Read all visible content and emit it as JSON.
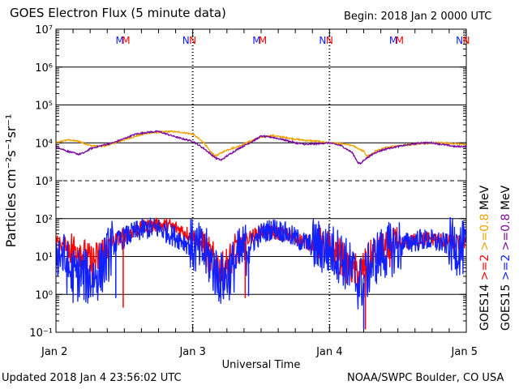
{
  "title": "GOES Electron Flux (5 minute data)",
  "begin_text": "Begin: 2018 Jan 2 0000 UTC",
  "updated_text": "Updated 2018 Jan  4 23:56:02 UTC",
  "credit_text": "NOAA/SWPC Boulder, CO USA",
  "colors": {
    "e08_goes14": "#f0a000",
    "e08_goes15": "#7a0a9e",
    "e2_goes14": "#ff0000",
    "e2_goes15": "#1020ff"
  },
  "chart_data": {
    "type": "line",
    "xlabel": "Universal Time",
    "ylabel": "Particles cm⁻²s⁻¹sr⁻¹",
    "y_scale": "log",
    "ylim_exponents": [
      -1,
      7
    ],
    "y_tick_labels": [
      "10⁻¹",
      "10⁰",
      "10¹",
      "10²",
      "10³",
      "10⁴",
      "10⁵",
      "10⁶",
      "10⁷"
    ],
    "x_tick_labels": [
      "Jan 2",
      "Jan 3",
      "Jan 4",
      "Jan 5"
    ],
    "x_units": "hours since 2018 Jan 2 0000 UTC",
    "xlim": [
      0,
      72
    ],
    "dashed_threshold": 1000,
    "noon_markers": [
      {
        "label": "M",
        "x": 11.2,
        "color": "blue"
      },
      {
        "label": "M",
        "x": 12.3,
        "color": "red"
      },
      {
        "label": "N",
        "x": 22.8,
        "color": "blue"
      },
      {
        "label": "N",
        "x": 24.0,
        "color": "red"
      },
      {
        "label": "M",
        "x": 35.2,
        "color": "blue"
      },
      {
        "label": "M",
        "x": 36.3,
        "color": "red"
      },
      {
        "label": "N",
        "x": 46.8,
        "color": "blue"
      },
      {
        "label": "N",
        "x": 48.0,
        "color": "red"
      },
      {
        "label": "M",
        "x": 59.2,
        "color": "blue"
      },
      {
        "label": "M",
        "x": 60.3,
        "color": "red"
      },
      {
        "label": "N",
        "x": 70.8,
        "color": "blue"
      },
      {
        "label": "N",
        "x": 72.0,
        "color": "red"
      }
    ],
    "legend_right": {
      "row1": [
        {
          "text": "GOES14",
          "color": "black"
        },
        {
          "text": ">=2",
          "color": "red"
        },
        {
          "text": ">=0.8",
          "color": "orange"
        },
        {
          "text": "MeV",
          "color": "black"
        }
      ],
      "row2": [
        {
          "text": "GOES15",
          "color": "black"
        },
        {
          "text": ">=2",
          "color": "blue"
        },
        {
          "text": ">=0.8",
          "color": "purple"
        },
        {
          "text": "MeV",
          "color": "black"
        }
      ]
    },
    "series": [
      {
        "name": "GOES14 >=0.8 MeV",
        "color": "#f0a000",
        "noise": 0.02,
        "x": [
          0,
          2,
          4,
          6,
          8,
          10,
          12,
          14,
          16,
          18,
          20,
          22,
          24,
          26,
          27,
          28,
          30,
          32,
          34,
          36,
          38,
          40,
          42,
          44,
          46,
          48,
          50,
          52,
          54,
          54.5,
          55,
          56,
          58,
          60,
          62,
          64,
          66,
          68,
          70,
          72
        ],
        "y": [
          10000,
          12000,
          11000,
          8500,
          8000,
          9500,
          12000,
          15000,
          18000,
          19000,
          20000,
          19000,
          17000,
          10000,
          6000,
          4500,
          6500,
          8000,
          11000,
          14000,
          15500,
          14000,
          12500,
          11500,
          11000,
          10000,
          9500,
          8500,
          6000,
          4500,
          4500,
          6000,
          7500,
          8500,
          9000,
          9500,
          10000,
          10000,
          9500,
          9000
        ]
      },
      {
        "name": "GOES15 >=0.8 MeV",
        "color": "#7a0a9e",
        "noise": 0.02,
        "x": [
          0,
          2,
          4,
          5,
          6,
          8,
          10,
          12,
          14,
          16,
          18,
          20,
          22,
          24,
          26,
          28,
          29,
          30,
          32,
          34,
          36,
          38,
          40,
          42,
          44,
          46,
          48,
          50,
          52,
          53,
          53.5,
          54,
          56,
          58,
          60,
          62,
          64,
          66,
          68,
          70,
          72
        ],
        "y": [
          8000,
          6000,
          5000,
          5500,
          7000,
          8500,
          10000,
          13000,
          17000,
          19000,
          20000,
          16000,
          13000,
          11000,
          7000,
          4000,
          3500,
          4500,
          7000,
          10000,
          15000,
          14000,
          12000,
          10000,
          9000,
          9500,
          10000,
          8500,
          5500,
          3000,
          2800,
          3500,
          5500,
          7000,
          8000,
          9000,
          10000,
          10000,
          9000,
          8000,
          8000
        ]
      },
      {
        "name": "GOES14 >=2 MeV",
        "color": "#ff0000",
        "noise": 0.2,
        "x": [
          0,
          1,
          2,
          3,
          4,
          5,
          6,
          7,
          8,
          9,
          10,
          12,
          14,
          16,
          18,
          20,
          22,
          24,
          26,
          27,
          28,
          29,
          30,
          31,
          32,
          34,
          36,
          38,
          40,
          42,
          44,
          46,
          48,
          50,
          51,
          52,
          53,
          54,
          55,
          56,
          58,
          60,
          62,
          64,
          66,
          68,
          70,
          72
        ],
        "y": [
          25,
          20,
          22,
          15,
          18,
          10,
          7,
          8,
          12,
          20,
          25,
          38,
          50,
          62,
          68,
          65,
          50,
          35,
          18,
          10,
          7,
          4,
          6,
          10,
          18,
          32,
          45,
          42,
          40,
          30,
          24,
          20,
          16,
          10,
          6,
          5,
          3.5,
          5,
          8,
          12,
          15,
          20,
          25,
          28,
          30,
          26,
          24,
          20
        ]
      },
      {
        "name": "GOES15 >=2 MeV",
        "color": "#1020ff",
        "noise": 0.3,
        "x": [
          0,
          1,
          2,
          3,
          4,
          5,
          6,
          7,
          8,
          9,
          10,
          12,
          14,
          16,
          18,
          20,
          22,
          24,
          26,
          27,
          28,
          29,
          30,
          31,
          32,
          34,
          36,
          38,
          40,
          42,
          44,
          46,
          48,
          50,
          51,
          52,
          53,
          54,
          55,
          56,
          58,
          60,
          62,
          64,
          66,
          68,
          70,
          72
        ],
        "y": [
          15,
          11,
          5,
          3,
          3.5,
          3,
          2.5,
          3,
          5,
          10,
          20,
          32,
          45,
          55,
          55,
          40,
          28,
          18,
          12,
          8,
          4,
          2.5,
          3,
          5,
          10,
          20,
          40,
          55,
          45,
          30,
          22,
          18,
          15,
          10,
          6,
          4,
          2,
          2,
          5,
          9,
          14,
          18,
          24,
          28,
          26,
          22,
          18,
          15
        ]
      }
    ],
    "spikes": [
      {
        "series": "GOES14 >=2 MeV",
        "x": 11.8,
        "y": 0.45
      },
      {
        "series": "GOES15 >=2 MeV",
        "x": 10.5,
        "y": 0.8
      },
      {
        "series": "GOES14 >=2 MeV",
        "x": 33.2,
        "y": 0.8
      },
      {
        "series": "GOES15 >=2 MeV",
        "x": 33.8,
        "y": 0.9
      },
      {
        "series": "GOES15 >=2 MeV",
        "x": 54.0,
        "y": 0.12
      },
      {
        "series": "GOES14 >=2 MeV",
        "x": 54.3,
        "y": 0.12
      }
    ]
  }
}
